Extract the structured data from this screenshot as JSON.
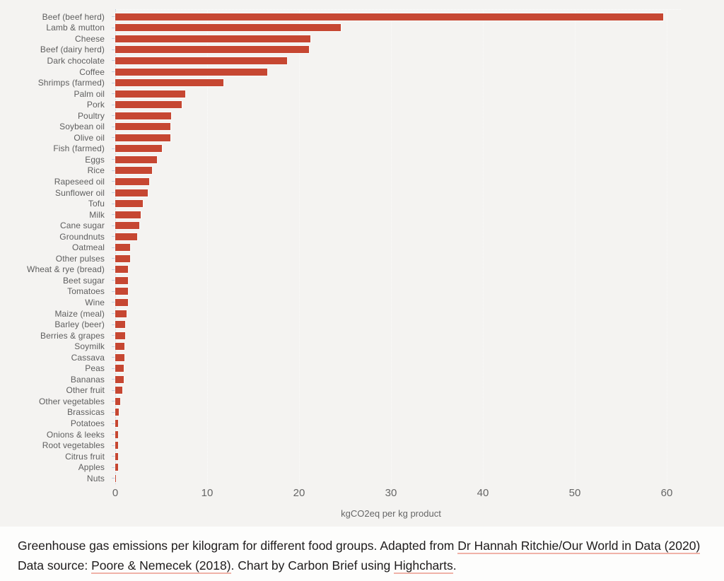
{
  "chart_data": {
    "type": "bar",
    "orientation": "horizontal",
    "title": "",
    "xlabel": "kgCO2eq per kg product",
    "categories": [
      "Beef (beef herd)",
      "Lamb & mutton",
      "Cheese",
      "Beef (dairy herd)",
      "Dark chocolate",
      "Coffee",
      "Shrimps (farmed)",
      "Palm oil",
      "Pork",
      "Poultry",
      "Soybean oil",
      "Olive oil",
      "Fish (farmed)",
      "Eggs",
      "Rice",
      "Rapeseed oil",
      "Sunflower oil",
      "Tofu",
      "Milk",
      "Cane sugar",
      "Groundnuts",
      "Oatmeal",
      "Other pulses",
      "Wheat & rye (bread)",
      "Beet sugar",
      "Tomatoes",
      "Wine",
      "Maize (meal)",
      "Barley (beer)",
      "Berries & grapes",
      "Soymilk",
      "Cassava",
      "Peas",
      "Bananas",
      "Other fruit",
      "Other vegetables",
      "Brassicas",
      "Potatoes",
      "Onions & leeks",
      "Root vegetables",
      "Citrus fruit",
      "Apples",
      "Nuts"
    ],
    "values": [
      59.6,
      24.5,
      21.2,
      21.1,
      18.7,
      16.5,
      11.8,
      7.6,
      7.2,
      6.1,
      6.0,
      6.0,
      5.1,
      4.5,
      4.0,
      3.7,
      3.5,
      3.0,
      2.8,
      2.6,
      2.4,
      1.6,
      1.6,
      1.4,
      1.4,
      1.4,
      1.4,
      1.2,
      1.1,
      1.1,
      1.0,
      1.0,
      0.9,
      0.9,
      0.8,
      0.5,
      0.4,
      0.3,
      0.3,
      0.3,
      0.3,
      0.3,
      0.1
    ],
    "xticks": [
      0,
      10,
      20,
      30,
      40,
      50,
      60
    ],
    "xlim": [
      0,
      61.5
    ],
    "grid": "vertical dotted gridlines at each x tick",
    "legend": "none",
    "bar_color": "#c64732"
  },
  "colors": {
    "chart_background": "#f4f3f1",
    "caption_background": "#fdfdfc",
    "bar": "#c64732",
    "axis_line": "#c3cede",
    "gridline": "#fbfbfa",
    "category_label_text": "#5e5e5e",
    "axis_text": "#666666",
    "caption_text": "#1f1c1c",
    "link_underline": "#f0b3a8"
  },
  "caption": {
    "segments": [
      {
        "text": "Greenhouse gas emissions per kilogram for different food groups. Adapted from ",
        "link": false
      },
      {
        "text": "Dr Hannah Ritchie/Our World in Data (2020)",
        "link": true
      },
      {
        "text": " Data source: ",
        "link": false
      },
      {
        "text": "Poore & Nemecek (2018)",
        "link": true
      },
      {
        "text": ". Chart by Carbon Brief using ",
        "link": false
      },
      {
        "text": "Highcharts",
        "link": true
      },
      {
        "text": ".",
        "link": false
      }
    ]
  }
}
